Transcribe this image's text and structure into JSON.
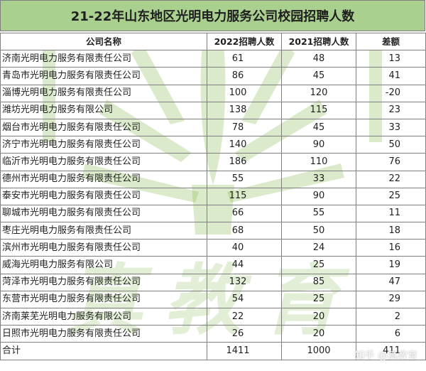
{
  "title": "21-22年山东地区光明电力服务公司校园招聘人数",
  "columns": [
    "公司名称",
    "2022招聘人数",
    "2021招聘人数",
    "差额"
  ],
  "rows": [
    {
      "name": "济南光明电力服务有限责任公司",
      "y2022": "61",
      "y2021": "48",
      "diff": "13"
    },
    {
      "name": "青岛市光明电力服务有限责任公司",
      "y2022": "86",
      "y2021": "45",
      "diff": "41"
    },
    {
      "name": "淄博光明电力服务有限责任公司",
      "y2022": "100",
      "y2021": "120",
      "diff": "-20"
    },
    {
      "name": "潍坊光明电力服务有限公司",
      "y2022": "138",
      "y2021": "115",
      "diff": "23"
    },
    {
      "name": "烟台市光明电力服务有限责任公司",
      "y2022": "78",
      "y2021": "45",
      "diff": "33"
    },
    {
      "name": "济宁市光明电力服务有限责任公司",
      "y2022": "140",
      "y2021": "90",
      "diff": "50"
    },
    {
      "name": "临沂市光明电力服务有限责任公司",
      "y2022": "186",
      "y2021": "110",
      "diff": "76"
    },
    {
      "name": "德州市光明电力服务有限责任公司",
      "y2022": "55",
      "y2021": "33",
      "diff": "22"
    },
    {
      "name": "泰安市光明电力服务有限责任公司",
      "y2022": "115",
      "y2021": "90",
      "diff": "25"
    },
    {
      "name": "聊城市光明电力服务有限责任公司",
      "y2022": "66",
      "y2021": "55",
      "diff": "11"
    },
    {
      "name": "枣庄光明电力服务有限责任公司",
      "y2022": "68",
      "y2021": "50",
      "diff": "18"
    },
    {
      "name": "滨州市光明电力服务有限责任公司",
      "y2022": "40",
      "y2021": "24",
      "diff": "16"
    },
    {
      "name": "威海光明电力服务有限公司",
      "y2022": "44",
      "y2021": "25",
      "diff": "19"
    },
    {
      "name": "菏泽市光明电力服务有限责任公司",
      "y2022": "132",
      "y2021": "85",
      "diff": "47"
    },
    {
      "name": "东营市光明电力服务有限责任公司",
      "y2022": "54",
      "y2021": "25",
      "diff": "29"
    },
    {
      "name": "济南莱芜光明电力服务有限公司",
      "y2022": "22",
      "y2021": "20",
      "diff": "2"
    },
    {
      "name": "日照市光明电力服务有限责任公司",
      "y2022": "26",
      "y2021": "20",
      "diff": "6"
    },
    {
      "name": "合计",
      "y2022": "1411",
      "y2021": "1000",
      "diff": "411"
    }
  ],
  "watermark": {
    "text": "真教育",
    "credit": "知乎 @真教育",
    "color": "#7cb342"
  },
  "colors": {
    "title_bg": "#a9d08e",
    "border": "#7f7f7f"
  }
}
